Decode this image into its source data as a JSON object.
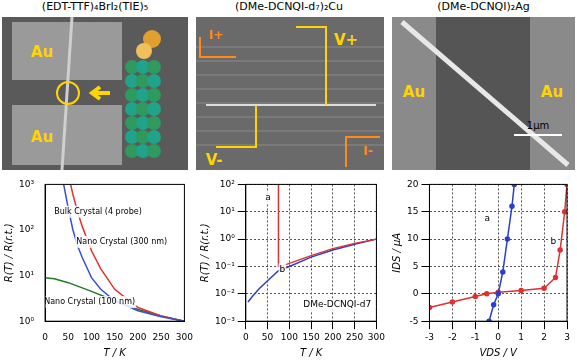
{
  "images": [
    {
      "title": "(EDT-TTF)₄BrI₂(TIE)₅",
      "labels": [
        "Au",
        "Au"
      ]
    },
    {
      "title": "(DMe-DCNQI-d₇)₂Cu",
      "labels": [
        "V+",
        "V-",
        "I+",
        "I-"
      ]
    },
    {
      "title": "(DMe-DCNQI)₂Ag",
      "labels": [
        "Au",
        "Au",
        "1μm"
      ]
    }
  ],
  "chart_data": [
    {
      "type": "line",
      "x_label": "T / K",
      "y_label": "R(T) / R(r.t.)",
      "log": "y",
      "grid": false,
      "xlim": [
        0,
        300
      ],
      "xticks": [
        0,
        50,
        100,
        150,
        200,
        250,
        300
      ],
      "ylim": [
        1,
        1000
      ],
      "yticks": [
        {
          "value": 1,
          "label": "10⁰"
        },
        {
          "value": 10,
          "label": "10¹"
        },
        {
          "value": 100,
          "label": "10²"
        },
        {
          "value": 1000,
          "label": "10³"
        }
      ],
      "series": [
        {
          "name": "Bulk Crystal (4 probe)",
          "color": "#3a4fd8",
          "marker": "none",
          "x": [
            40,
            50,
            60,
            70,
            80,
            100,
            120,
            150,
            200,
            250,
            300
          ],
          "values": [
            1000,
            300,
            100,
            45,
            25,
            9,
            5,
            2.8,
            1.7,
            1.25,
            1
          ]
        },
        {
          "name": "Nano Crystal (300 nm)",
          "color": "#e03030",
          "marker": "none",
          "x": [
            55,
            60,
            70,
            80,
            100,
            120,
            150,
            200,
            250,
            300
          ],
          "values": [
            1000,
            600,
            250,
            120,
            35,
            14,
            5,
            2,
            1.3,
            1
          ]
        },
        {
          "name": "Nano Crystal (100 nm)",
          "color": "#1f7a2a",
          "marker": "none",
          "x": [
            0,
            20,
            50,
            100,
            150,
            200,
            250,
            300
          ],
          "values": [
            9,
            8.5,
            7,
            4.5,
            2.8,
            1.8,
            1.3,
            1
          ]
        }
      ]
    },
    {
      "type": "line",
      "x_label": "T / K",
      "y_label": "R(T) / R(r.t.)",
      "log": "y",
      "grid": true,
      "xlim": [
        0,
        300
      ],
      "xticks": [
        0,
        50,
        100,
        150,
        200,
        250,
        300
      ],
      "ylim": [
        0.001,
        100
      ],
      "yticks": [
        {
          "value": 0.001,
          "label": "10⁻³"
        },
        {
          "value": 0.01,
          "label": "10⁻²"
        },
        {
          "value": 0.1,
          "label": "10⁻¹"
        },
        {
          "value": 1,
          "label": "10⁰"
        },
        {
          "value": 10,
          "label": "10¹"
        },
        {
          "value": 100,
          "label": "10²"
        }
      ],
      "annotations": [
        "DMe-DCNQI-d7"
      ],
      "series": [
        {
          "name": "a",
          "color": "#e03030",
          "marker": "none",
          "x": [
            300,
            250,
            200,
            150,
            100,
            80,
            76,
            75
          ],
          "values": [
            1,
            0.7,
            0.45,
            0.25,
            0.13,
            0.1,
            0.1,
            100
          ]
        },
        {
          "name": "b",
          "color": "#2a3fd0",
          "marker": "none",
          "x": [
            300,
            250,
            200,
            150,
            100,
            75,
            50,
            30,
            15,
            5
          ],
          "values": [
            1,
            0.65,
            0.4,
            0.22,
            0.1,
            0.07,
            0.03,
            0.015,
            0.008,
            0.005
          ]
        }
      ]
    },
    {
      "type": "line",
      "x_label": "VDS / V",
      "y_label": "IDS / μA",
      "grid": true,
      "xlim": [
        -3,
        3
      ],
      "xticks": [
        -3,
        -2,
        -1,
        0,
        1,
        2,
        3
      ],
      "ylim": [
        -5,
        20
      ],
      "yticks": [
        -5,
        0,
        5,
        10,
        15,
        20
      ],
      "series": [
        {
          "name": "a",
          "color": "#2a3fd0",
          "marker": "circle",
          "x": [
            -0.4,
            -0.2,
            0,
            0.2,
            0.4,
            0.6,
            0.7
          ],
          "values": [
            -5,
            -2,
            0,
            4,
            10,
            16,
            20
          ]
        },
        {
          "name": "b",
          "color": "#e03030",
          "marker": "circle",
          "x": [
            -3,
            -2,
            -1,
            -0.5,
            0,
            1,
            2,
            2.5,
            2.7,
            2.9,
            3
          ],
          "values": [
            -2.5,
            -1.5,
            -0.5,
            0,
            0.3,
            0.6,
            1,
            3,
            8,
            15,
            20
          ]
        }
      ]
    }
  ]
}
